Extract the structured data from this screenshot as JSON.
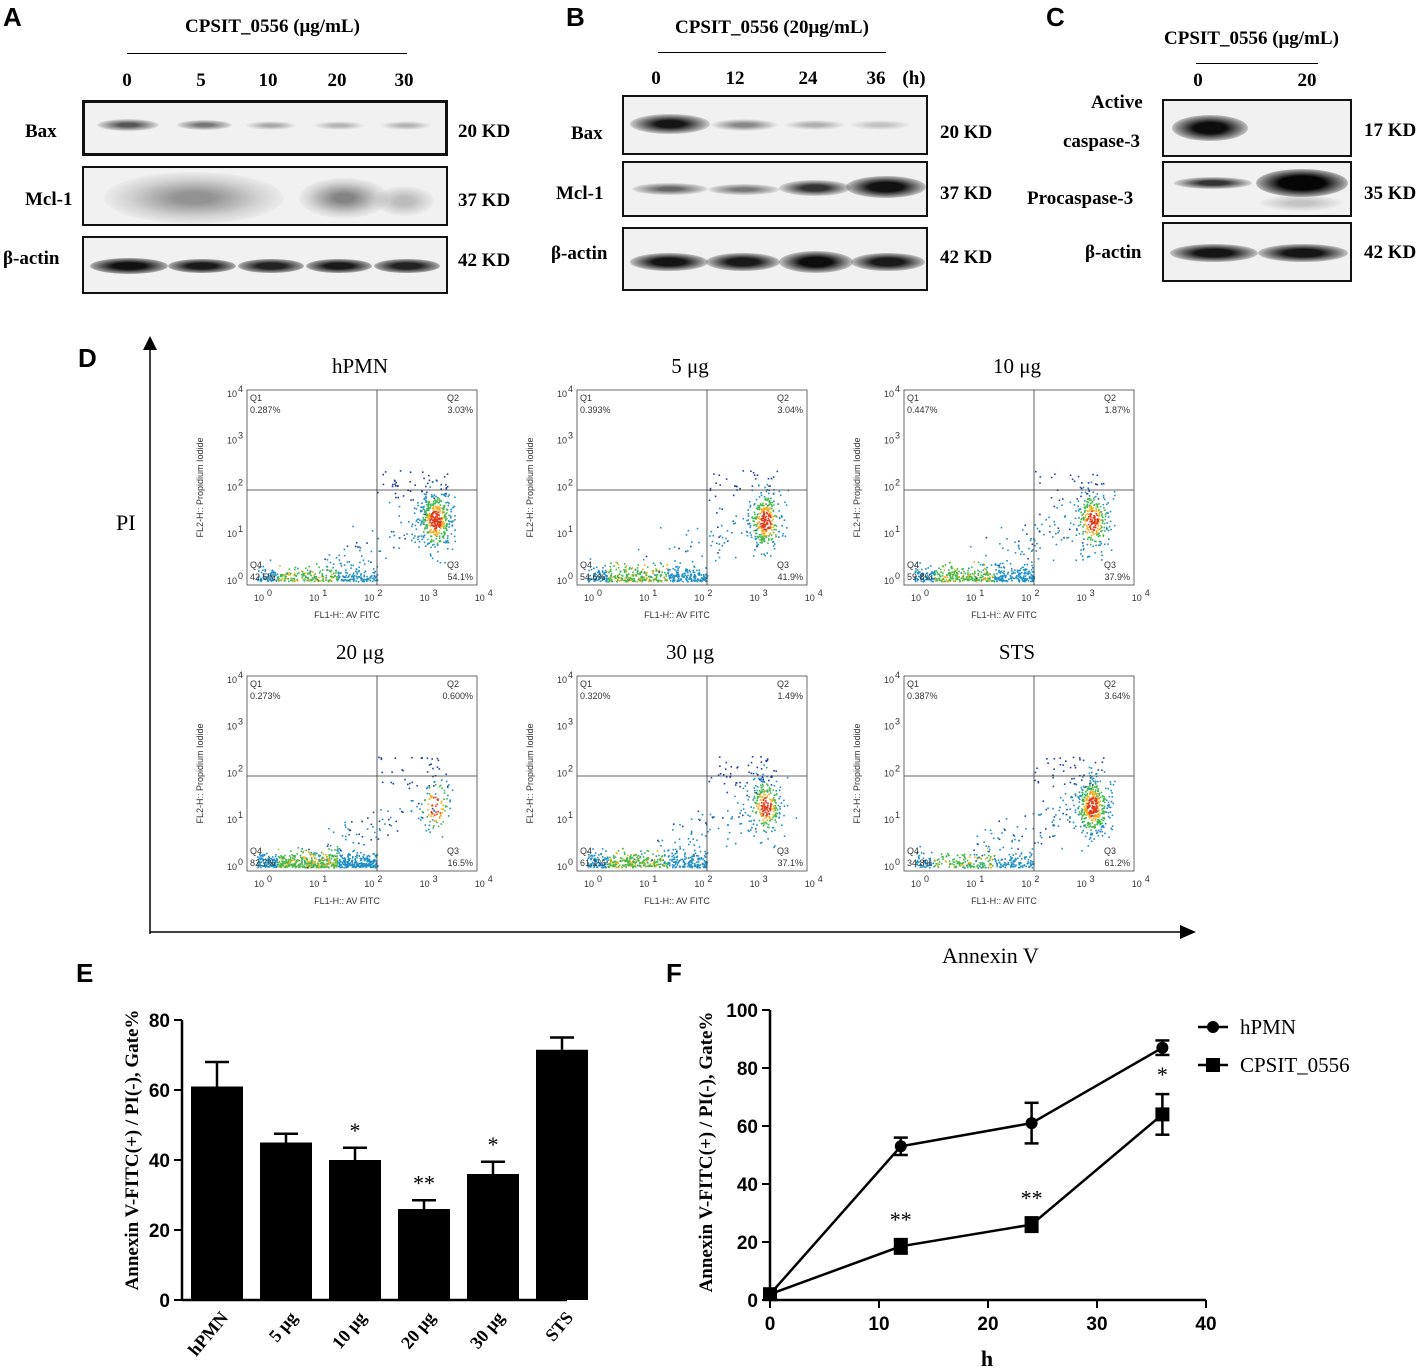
{
  "panel_A": {
    "letter": "A",
    "header": "CPSIT_0556 (μg/mL)",
    "lanes": [
      "0",
      "5",
      "10",
      "20",
      "30"
    ],
    "rows": [
      {
        "label": "Bax",
        "kd": "20 KD"
      },
      {
        "label": "Mcl-1",
        "kd": "37 KD"
      },
      {
        "label": "β-actin",
        "kd": "42 KD"
      }
    ]
  },
  "panel_B": {
    "letter": "B",
    "header": "CPSIT_0556 (20μg/mL)",
    "lanes": [
      "0",
      "12",
      "24",
      "36"
    ],
    "unit": "(h)",
    "rows": [
      {
        "label": "Bax",
        "kd": "20 KD"
      },
      {
        "label": "Mcl-1",
        "kd": "37 KD"
      },
      {
        "label": "β-actin",
        "kd": "42 KD"
      }
    ]
  },
  "panel_C": {
    "letter": "C",
    "header": "CPSIT_0556 (μg/mL)",
    "lanes": [
      "0",
      "20"
    ],
    "rows": [
      {
        "label_line1": "Active",
        "label_line2": "caspase-3",
        "kd": "17 KD"
      },
      {
        "label": "Procaspase-3",
        "kd": "35 KD"
      },
      {
        "label": "β-actin",
        "kd": "42 KD"
      }
    ]
  },
  "panel_D": {
    "letter": "D",
    "y_axis": "PI",
    "x_axis": "Annexin V",
    "plot_ylabel": "FL2-H:: Propidium Iodide",
    "plot_xlabel": "FL1-H:: AV FITC",
    "decades": [
      "10",
      "10",
      "10",
      "10",
      "10"
    ],
    "exponents": [
      "0",
      "1",
      "2",
      "3",
      "4"
    ],
    "plots": [
      {
        "title": "hPMN",
        "q1": "0.287%",
        "q2": "3.03%",
        "q3": "54.1%",
        "q4": "42.5%"
      },
      {
        "title": "5 μg",
        "q1": "0.393%",
        "q2": "3.04%",
        "q3": "41.9%",
        "q4": "54.6%"
      },
      {
        "title": "10 μg",
        "q1": "0.447%",
        "q2": "1.87%",
        "q3": "37.9%",
        "q4": "59.8%"
      },
      {
        "title": "20 μg",
        "q1": "0.273%",
        "q2": "0.600%",
        "q3": "16.5%",
        "q4": "82.7%"
      },
      {
        "title": "30 μg",
        "q1": "0.320%",
        "q2": "1.49%",
        "q3": "37.1%",
        "q4": "61.1%"
      },
      {
        "title": "STS",
        "q1": "0.387%",
        "q2": "3.64%",
        "q3": "61.2%",
        "q4": "34.8%"
      }
    ],
    "quadrant_names": [
      "Q1",
      "Q2",
      "Q3",
      "Q4"
    ]
  },
  "panel_E": {
    "letter": "E"
  },
  "panel_F": {
    "letter": "F"
  },
  "chart_data": [
    {
      "type": "bar",
      "panel": "E",
      "categories": [
        "hPMN",
        "5 μg",
        "10 μg",
        "20 μg",
        "30 μg",
        "STS"
      ],
      "values": [
        61,
        45,
        40,
        26,
        36,
        71.5
      ],
      "errors": [
        7,
        2.5,
        3.5,
        2.5,
        3.5,
        3.5
      ],
      "significance": [
        "",
        "",
        "*",
        "**",
        "*",
        ""
      ],
      "ylabel": "Annexin V-FITC(+) / PI(-), Gate%",
      "xlabel": "",
      "ylim": [
        0,
        80
      ],
      "yticks": [
        "0",
        "20",
        "40",
        "60",
        "80"
      ]
    },
    {
      "type": "line",
      "panel": "F",
      "x": [
        0,
        12,
        24,
        36
      ],
      "series": [
        {
          "name": "hPMN",
          "marker": "circle",
          "values": [
            2,
            53,
            61,
            87
          ],
          "errors": [
            1,
            3,
            7,
            2.5
          ],
          "significance": [
            "",
            "",
            "",
            ""
          ]
        },
        {
          "name": "CPSIT_0556",
          "marker": "square",
          "values": [
            2,
            18.5,
            26,
            64
          ],
          "errors": [
            1,
            2.5,
            2.5,
            7
          ],
          "significance": [
            "",
            "**",
            "**",
            "*"
          ]
        }
      ],
      "xlabel": "h",
      "ylabel": "Annexin V-FITC(+) / PI(-), Gate%",
      "xlim": [
        0,
        40
      ],
      "ylim": [
        0,
        100
      ],
      "xticks": [
        "0",
        "10",
        "20",
        "30",
        "40"
      ],
      "yticks": [
        "0",
        "20",
        "40",
        "60",
        "80",
        "100"
      ]
    }
  ]
}
